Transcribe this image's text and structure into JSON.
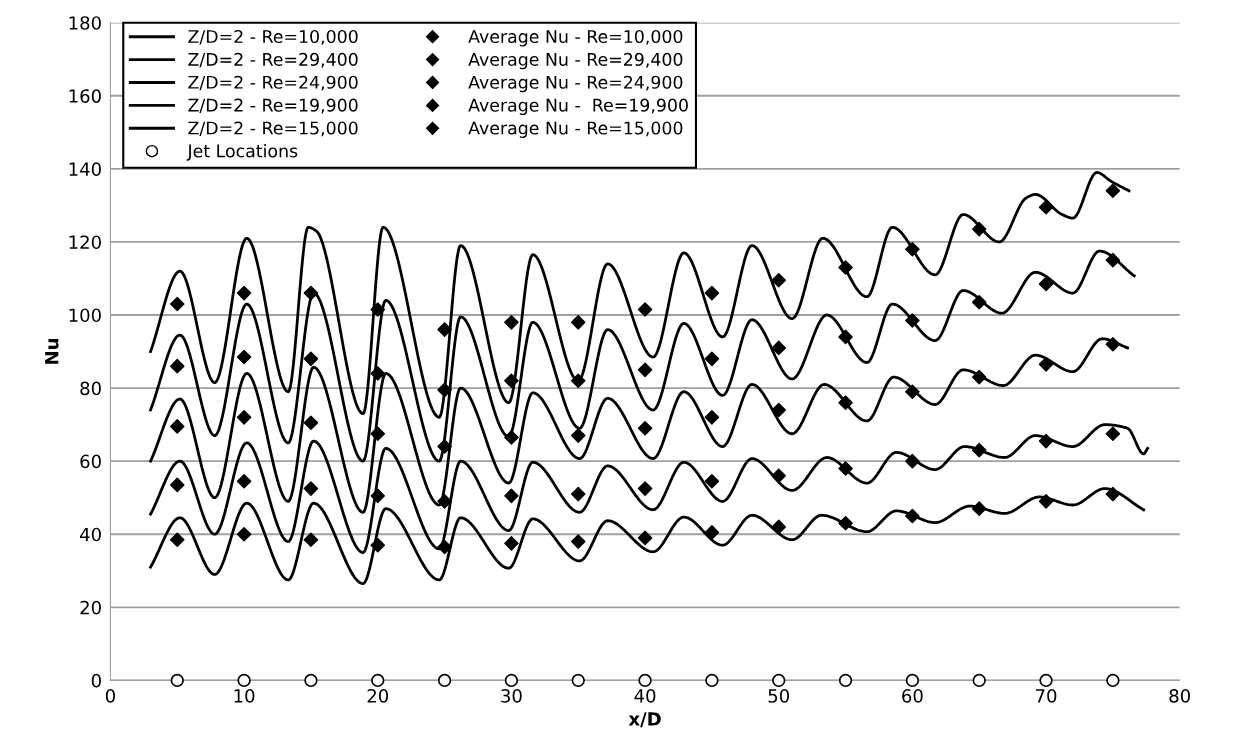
{
  "chart_data": {
    "type": "line",
    "xlabel": "x/D",
    "ylabel": "Nu",
    "xlim": [
      0,
      80
    ],
    "xticks": [
      0,
      10,
      20,
      30,
      40,
      50,
      60,
      70,
      80
    ],
    "ylim": [
      0,
      180
    ],
    "yticks": [
      0,
      20,
      40,
      60,
      80,
      100,
      120,
      140,
      160,
      180
    ],
    "grid": "y",
    "legend": "top left",
    "marker": "none",
    "line_style": "solid",
    "series": [
      {
        "name": "Z/D=2 - Re=10,000",
        "color": "#000000",
        "x": [
          3.0,
          5.2,
          7.8,
          10.2,
          13.3,
          15.2,
          18.9,
          20.6,
          24.6,
          26.2,
          29.8,
          31.6,
          35.1,
          37.2,
          40.6,
          42.9,
          45.8,
          48.0,
          51.0,
          53.2,
          56.6,
          58.8,
          61.7,
          64.3,
          66.9,
          69.5,
          72.0,
          74.4,
          77.3
        ],
        "values": [
          31,
          44.5,
          29,
          48.5,
          27.5,
          48.5,
          26.5,
          47,
          27.5,
          44.5,
          30.7,
          44.2,
          32.7,
          43.7,
          35.2,
          44.7,
          37,
          45.2,
          38.5,
          45.2,
          40.7,
          46.4,
          43.2,
          47.7,
          45.7,
          50.2,
          48,
          52.5,
          46.7
        ]
      },
      {
        "name": "Z/D=2 - Re=29,400",
        "color": "#000000",
        "x": [
          3.0,
          5.2,
          7.8,
          10.2,
          13.3,
          14.8,
          15.4,
          18.9,
          20.4,
          24.6,
          26.2,
          29.8,
          31.6,
          35.0,
          37.2,
          40.6,
          42.9,
          45.8,
          48.0,
          51.0,
          53.3,
          56.6,
          58.5,
          61.7,
          63.8,
          66.5,
          68.5,
          69.2,
          71.2,
          72.0,
          73.8,
          74.9,
          76.2
        ],
        "values": [
          90,
          112,
          81.5,
          121,
          79,
          124,
          123,
          73,
          124,
          72,
          119,
          76,
          116.5,
          82,
          114,
          88.5,
          117,
          94,
          119,
          99,
          121,
          105,
          124,
          111,
          127.5,
          120,
          132,
          133,
          127.5,
          126.5,
          139,
          136.5,
          134
        ]
      },
      {
        "name": "Z/D=2 - Re=24,900",
        "color": "#000000",
        "x": [
          3.0,
          5.2,
          7.8,
          10.2,
          13.3,
          15.2,
          18.9,
          20.6,
          24.6,
          26.2,
          29.8,
          31.6,
          35.1,
          37.2,
          40.6,
          42.9,
          45.8,
          48.0,
          51.0,
          53.6,
          56.6,
          58.5,
          61.7,
          63.8,
          66.7,
          69.2,
          72.0,
          74.0,
          76.6
        ],
        "values": [
          74,
          94.5,
          67,
          103,
          65,
          106,
          60,
          104,
          60,
          99.5,
          66.7,
          98,
          69,
          96,
          74,
          97.7,
          78,
          98.7,
          82.5,
          100,
          87,
          103,
          93,
          106.7,
          100.5,
          111.7,
          106,
          117.5,
          110.7
        ]
      },
      {
        "name": "Z/D=2 - Re=19,900",
        "color": "#000000",
        "x": [
          3.0,
          5.2,
          7.8,
          10.2,
          13.3,
          15.2,
          18.9,
          20.6,
          24.6,
          26.2,
          29.8,
          31.6,
          35.1,
          37.2,
          40.6,
          42.9,
          45.8,
          48.0,
          51.0,
          53.4,
          56.6,
          58.6,
          61.7,
          63.8,
          66.8,
          69.2,
          72.0,
          74.2,
          76.1
        ],
        "values": [
          60,
          77,
          50,
          84,
          49,
          85.7,
          46,
          84,
          48,
          80,
          54,
          78.7,
          60.7,
          77.2,
          60.7,
          79,
          64,
          81,
          67.5,
          81,
          71,
          83,
          75.5,
          85,
          80.7,
          89,
          84.5,
          93.5,
          91
        ]
      },
      {
        "name": "Z/D=2 - Re=15,000",
        "color": "#000000",
        "x": [
          3.0,
          5.2,
          7.8,
          10.2,
          13.3,
          15.2,
          18.9,
          20.6,
          24.6,
          26.2,
          29.8,
          31.6,
          35.1,
          37.2,
          40.6,
          42.9,
          45.8,
          48.0,
          51.0,
          53.6,
          56.6,
          58.8,
          61.7,
          63.9,
          66.9,
          69.2,
          72.0,
          74.4,
          76.1,
          77.3,
          77.6
        ],
        "values": [
          45.5,
          60,
          40,
          65,
          38,
          65.5,
          35,
          63.5,
          36,
          60,
          41,
          59.7,
          46,
          58.7,
          46.7,
          59.7,
          49,
          60.7,
          52,
          61,
          54,
          62.4,
          57.7,
          64,
          61,
          67,
          64,
          70,
          69,
          62,
          63.5
        ]
      },
      {
        "name": "Jet Locations",
        "type": "scatter",
        "marker": "circle",
        "color": "#000000",
        "x": [
          5,
          10,
          15,
          20,
          25,
          30,
          35,
          40,
          45,
          50,
          55,
          60,
          65,
          70,
          75
        ],
        "values": [
          0,
          0,
          0,
          0,
          0,
          0,
          0,
          0,
          0,
          0,
          0,
          0,
          0,
          0,
          0
        ]
      },
      {
        "name": "Average Nu - Re=10,000",
        "type": "scatter",
        "marker": "diamond",
        "color": "#000000",
        "x": [
          5,
          10,
          15,
          20,
          25,
          30,
          35,
          40,
          45,
          50,
          55,
          60,
          65,
          70,
          75
        ],
        "values": [
          38.5,
          40,
          38.5,
          37,
          36.5,
          37.5,
          38,
          39,
          40.5,
          42,
          43,
          45,
          47,
          49,
          51
        ]
      },
      {
        "name": "Average Nu - Re=29,400",
        "type": "scatter",
        "marker": "diamond",
        "color": "#000000",
        "x": [
          5,
          10,
          15,
          20,
          25,
          30,
          35,
          40,
          45,
          50,
          55,
          60,
          65,
          70,
          75
        ],
        "values": [
          103,
          106,
          106,
          101.5,
          96,
          98,
          98,
          101.5,
          106,
          109.5,
          113,
          118,
          123.5,
          129.5,
          134
        ]
      },
      {
        "name": "Average Nu - Re=24,900",
        "type": "scatter",
        "marker": "diamond",
        "color": "#000000",
        "x": [
          5,
          10,
          15,
          20,
          25,
          30,
          35,
          40,
          45,
          50,
          55,
          60,
          65,
          70,
          75
        ],
        "values": [
          86,
          88.5,
          88,
          84,
          79.5,
          82,
          82,
          85,
          88,
          91,
          94,
          98.5,
          103.5,
          108.5,
          115
        ]
      },
      {
        "name": "Average Nu -  Re=19,900",
        "type": "scatter",
        "marker": "diamond",
        "color": "#000000",
        "x": [
          5,
          10,
          15,
          20,
          25,
          30,
          35,
          40,
          45,
          50,
          55,
          60,
          65,
          70,
          75
        ],
        "values": [
          69.5,
          72,
          70.5,
          67.5,
          64,
          66.5,
          67,
          69,
          72,
          74,
          76,
          79,
          83,
          86.5,
          92
        ]
      },
      {
        "name": "Average Nu - Re=15,000",
        "type": "scatter",
        "marker": "diamond",
        "color": "#000000",
        "x": [
          5,
          10,
          15,
          20,
          25,
          30,
          35,
          40,
          45,
          50,
          55,
          60,
          65,
          70,
          75
        ],
        "values": [
          53.5,
          54.5,
          52.5,
          50.5,
          49,
          50.5,
          51,
          52.5,
          54.5,
          56,
          58,
          60,
          63,
          65.5,
          67.5
        ]
      }
    ]
  }
}
